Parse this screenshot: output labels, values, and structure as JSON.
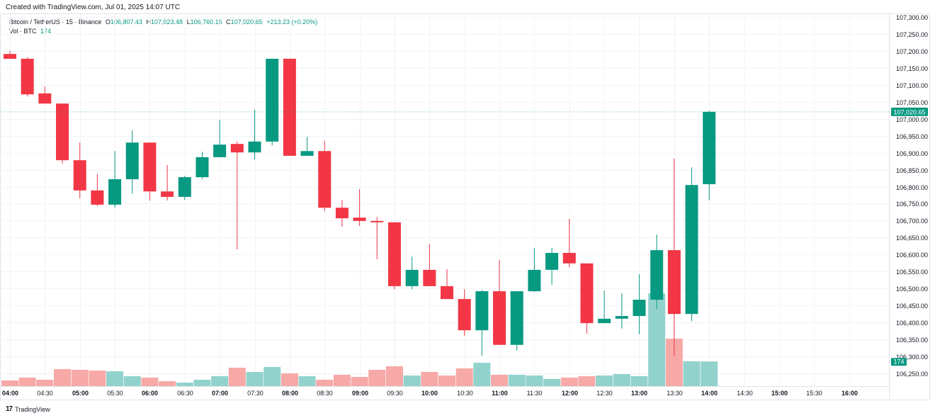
{
  "header": {
    "created": "Created with TradingView.com, Jul 01, 2025 14:07 UTC",
    "symbol": "Bitcoin / TetherUS · 15 · Binance",
    "o_label": "O",
    "o": "106,807.43",
    "h_label": "H",
    "h": "107,023.48",
    "l_label": "L",
    "l": "106,760.15",
    "c_label": "C",
    "c": "107,020.65",
    "change": "+213.23 (+0.20%)",
    "vol_label": "Vol · BTC",
    "vol": "174"
  },
  "footer": {
    "logo_text": "TradingView"
  },
  "colors": {
    "up": "#089981",
    "down": "#F23645",
    "vol_up": "#92D2CC",
    "vol_down": "#F7A9A7"
  },
  "chart_data": {
    "type": "candlestick",
    "title": "Bitcoin / TetherUS · 15 · Binance",
    "interval_minutes": 15,
    "start_time": "04:00",
    "ylim": [
      106230,
      107320
    ],
    "price_ticks": [
      107300,
      107250,
      107200,
      107150,
      107100,
      107050,
      107000,
      106950,
      106900,
      106850,
      106800,
      106750,
      106700,
      106650,
      106600,
      106550,
      106500,
      106450,
      106400,
      106350,
      106300,
      106250
    ],
    "price_tick_labels": [
      "107,300.00",
      "107,250.00",
      "107,200.00",
      "107,150.00",
      "107,100.00",
      "107,050.00",
      "107,000.00",
      "106,950.00",
      "106,900.00",
      "106,850.00",
      "106,800.00",
      "106,750.00",
      "106,700.00",
      "106,650.00",
      "106,600.00",
      "106,550.00",
      "106,500.00",
      "106,450.00",
      "106,400.00",
      "106,350.00",
      "106,300.00",
      "106,250.00"
    ],
    "time_ticks": [
      {
        "label": "04:00",
        "index": 0,
        "bold": true
      },
      {
        "label": "04:30",
        "index": 2
      },
      {
        "label": "05:00",
        "index": 4,
        "bold": true
      },
      {
        "label": "05:30",
        "index": 6
      },
      {
        "label": "06:00",
        "index": 8,
        "bold": true
      },
      {
        "label": "06:30",
        "index": 10
      },
      {
        "label": "07:00",
        "index": 12,
        "bold": true
      },
      {
        "label": "07:30",
        "index": 14
      },
      {
        "label": "08:00",
        "index": 16,
        "bold": true
      },
      {
        "label": "08:30",
        "index": 18
      },
      {
        "label": "09:00",
        "index": 20,
        "bold": true
      },
      {
        "label": "09:30",
        "index": 22
      },
      {
        "label": "10:00",
        "index": 24,
        "bold": true
      },
      {
        "label": "10:30",
        "index": 26
      },
      {
        "label": "11:00",
        "index": 28,
        "bold": true
      },
      {
        "label": "11:30",
        "index": 30
      },
      {
        "label": "12:00",
        "index": 32,
        "bold": true
      },
      {
        "label": "12:30",
        "index": 34
      },
      {
        "label": "13:00",
        "index": 36,
        "bold": true
      },
      {
        "label": "13:30",
        "index": 38
      },
      {
        "label": "14:00",
        "index": 40,
        "bold": true
      },
      {
        "label": "14:30",
        "index": 42
      },
      {
        "label": "15:00",
        "index": 44,
        "bold": true
      },
      {
        "label": "15:30",
        "index": 46
      },
      {
        "label": "16:00",
        "index": 48,
        "bold": true
      }
    ],
    "last_price": 107020.65,
    "last_price_label": "107,020.65",
    "last_volume_label": "174",
    "volume_max_scale": 800,
    "candles": [
      {
        "o": 107191,
        "h": 107200,
        "l": 107177,
        "c": 107177,
        "v": 40
      },
      {
        "o": 107177,
        "h": 107181,
        "l": 107066,
        "c": 107072,
        "v": 60
      },
      {
        "o": 107075,
        "h": 107095,
        "l": 107045,
        "c": 107045,
        "v": 45
      },
      {
        "o": 107045,
        "h": 107045,
        "l": 106868,
        "c": 106878,
        "v": 120
      },
      {
        "o": 106878,
        "h": 106930,
        "l": 106766,
        "c": 106789,
        "v": 115
      },
      {
        "o": 106789,
        "h": 106837,
        "l": 106743,
        "c": 106747,
        "v": 110
      },
      {
        "o": 106747,
        "h": 106905,
        "l": 106738,
        "c": 106822,
        "v": 105
      },
      {
        "o": 106822,
        "h": 106966,
        "l": 106780,
        "c": 106930,
        "v": 70
      },
      {
        "o": 106930,
        "h": 106930,
        "l": 106759,
        "c": 106786,
        "v": 60
      },
      {
        "o": 106786,
        "h": 106864,
        "l": 106759,
        "c": 106770,
        "v": 35
      },
      {
        "o": 106770,
        "h": 106832,
        "l": 106761,
        "c": 106828,
        "v": 25
      },
      {
        "o": 106828,
        "h": 106903,
        "l": 106822,
        "c": 106887,
        "v": 45
      },
      {
        "o": 106887,
        "h": 106997,
        "l": 106887,
        "c": 106924,
        "v": 70
      },
      {
        "o": 106926,
        "h": 106933,
        "l": 106615,
        "c": 106901,
        "v": 130
      },
      {
        "o": 106901,
        "h": 107027,
        "l": 106880,
        "c": 106933,
        "v": 100
      },
      {
        "o": 106933,
        "h": 107177,
        "l": 106922,
        "c": 107177,
        "v": 135
      },
      {
        "o": 107177,
        "h": 107177,
        "l": 106891,
        "c": 106891,
        "v": 90
      },
      {
        "o": 106891,
        "h": 106947,
        "l": 106891,
        "c": 106905,
        "v": 70
      },
      {
        "o": 106905,
        "h": 106935,
        "l": 106728,
        "c": 106738,
        "v": 45
      },
      {
        "o": 106738,
        "h": 106761,
        "l": 106682,
        "c": 106707,
        "v": 80
      },
      {
        "o": 106709,
        "h": 106793,
        "l": 106684,
        "c": 106699,
        "v": 65
      },
      {
        "o": 106699,
        "h": 106711,
        "l": 106586,
        "c": 106695,
        "v": 115
      },
      {
        "o": 106695,
        "h": 106695,
        "l": 106498,
        "c": 106507,
        "v": 140
      },
      {
        "o": 106507,
        "h": 106594,
        "l": 106498,
        "c": 106555,
        "v": 75
      },
      {
        "o": 106555,
        "h": 106632,
        "l": 106507,
        "c": 106507,
        "v": 100
      },
      {
        "o": 106507,
        "h": 106557,
        "l": 106469,
        "c": 106469,
        "v": 75
      },
      {
        "o": 106469,
        "h": 106498,
        "l": 106361,
        "c": 106377,
        "v": 125
      },
      {
        "o": 106377,
        "h": 106496,
        "l": 106302,
        "c": 106492,
        "v": 165
      },
      {
        "o": 106492,
        "h": 106584,
        "l": 106334,
        "c": 106334,
        "v": 80
      },
      {
        "o": 106334,
        "h": 106492,
        "l": 106317,
        "c": 106492,
        "v": 80
      },
      {
        "o": 106492,
        "h": 106620,
        "l": 106490,
        "c": 106555,
        "v": 75
      },
      {
        "o": 106555,
        "h": 106620,
        "l": 106511,
        "c": 106605,
        "v": 50
      },
      {
        "o": 106605,
        "h": 106705,
        "l": 106563,
        "c": 106574,
        "v": 60
      },
      {
        "o": 106574,
        "h": 106574,
        "l": 106367,
        "c": 106398,
        "v": 70
      },
      {
        "o": 106398,
        "h": 106494,
        "l": 106398,
        "c": 106411,
        "v": 75
      },
      {
        "o": 106411,
        "h": 106486,
        "l": 106382,
        "c": 106419,
        "v": 85
      },
      {
        "o": 106419,
        "h": 106542,
        "l": 106365,
        "c": 106467,
        "v": 70
      },
      {
        "o": 106467,
        "h": 106659,
        "l": 106440,
        "c": 106613,
        "v": 655
      },
      {
        "o": 106613,
        "h": 106883,
        "l": 106300,
        "c": 106425,
        "v": 335
      },
      {
        "o": 106425,
        "h": 106857,
        "l": 106404,
        "c": 106805,
        "v": 175
      },
      {
        "o": 106807.43,
        "h": 107023.48,
        "l": 106760.15,
        "c": 107020.65,
        "v": 174
      }
    ]
  }
}
